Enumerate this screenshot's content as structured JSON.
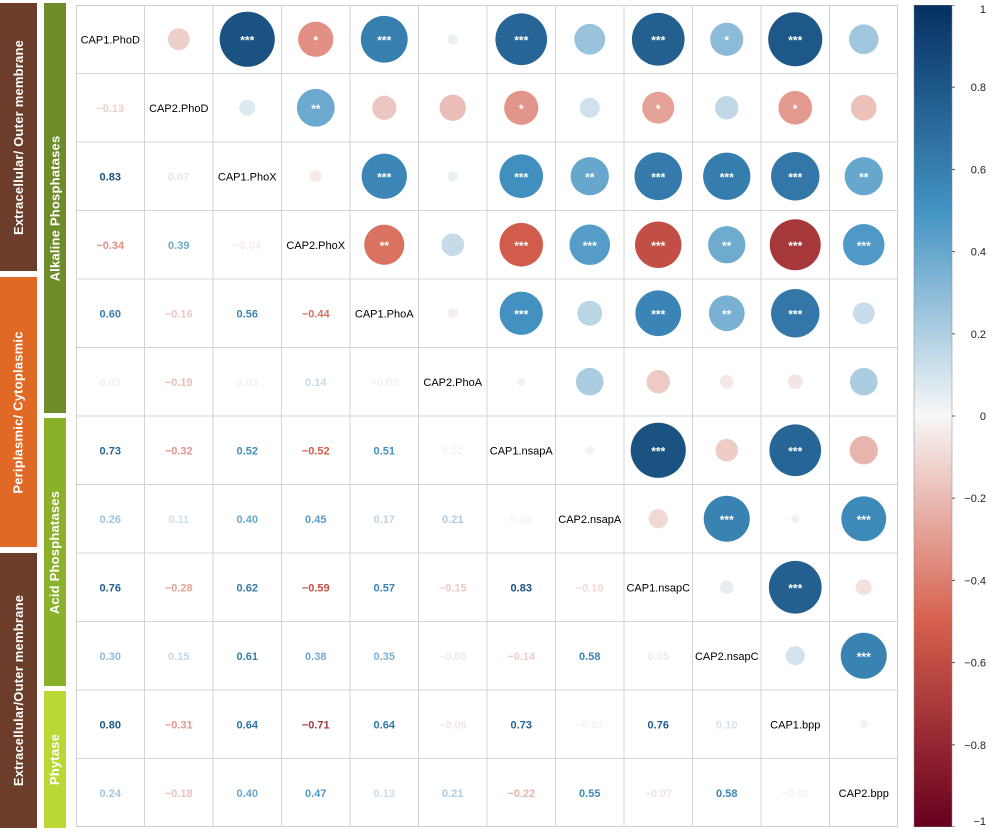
{
  "bands": [
    {
      "id": "extracellular-outer-top",
      "label": "Extracellular/ Outer membrane",
      "color": "#6b3d2a"
    },
    {
      "id": "periplasmic-cytoplasmic",
      "label": "Periplasmic/ Cytoplasmic",
      "color": "#e06a25"
    },
    {
      "id": "extracellular-outer-bottom",
      "label": "Extracellular/Outer membrane",
      "color": "#6b3d2a"
    },
    {
      "id": "alkaline-phosphatases",
      "label": "Alkaline Phosphatases",
      "color": "#6e8c2a"
    },
    {
      "id": "acid-phosphatases",
      "label": "Acid Phosphatases",
      "color": "#8bb02a"
    },
    {
      "id": "phytase",
      "label": "Phytase",
      "color": "#b9d833"
    }
  ],
  "chart_data": {
    "type": "heatmap",
    "variables": [
      "CAP1.PhoD",
      "CAP2.PhoD",
      "CAP1.PhoX",
      "CAP2.PhoX",
      "CAP1.PhoA",
      "CAP2.PhoA",
      "CAP1.nsapA",
      "CAP2.nsapA",
      "CAP1.nsapC",
      "CAP2.nsapC",
      "CAP1.bpp",
      "CAP2.bpp"
    ],
    "lower_labels": [
      [],
      [
        "−0.13"
      ],
      [
        "0.83",
        "0.07"
      ],
      [
        "−0.34",
        "0.39",
        "−0.04"
      ],
      [
        "0.60",
        "−0.16",
        "0.56",
        "−0.44"
      ],
      [
        "0.03",
        "−0.19",
        "0.03",
        "0.14",
        "−0.03"
      ],
      [
        "0.73",
        "−0.32",
        "0.52",
        "−0.52",
        "0.51",
        "0.02"
      ],
      [
        "0.26",
        "0.11",
        "0.40",
        "0.45",
        "0.17",
        "0.21",
        "0.02"
      ],
      [
        "0.76",
        "−0.28",
        "0.62",
        "−0.59",
        "0.57",
        "−0.15",
        "0.83",
        "−0.10"
      ],
      [
        "0.30",
        "0.15",
        "0.61",
        "0.38",
        "0.35",
        "−0.05",
        "−0.14",
        "0.58",
        "0.05"
      ],
      [
        "0.80",
        "−0.31",
        "0.64",
        "−0.71",
        "0.64",
        "−0.06",
        "0.73",
        "−0.02",
        "0.76",
        "0.10"
      ],
      [
        "0.24",
        "−0.18",
        "0.40",
        "0.47",
        "0.13",
        "0.21",
        "−0.22",
        "0.55",
        "−0.07",
        "0.58",
        "−0.02"
      ]
    ],
    "correlation": [
      [
        1.0,
        -0.13,
        0.83,
        -0.34,
        0.6,
        0.03,
        0.73,
        0.26,
        0.76,
        0.3,
        0.8,
        0.24
      ],
      [
        -0.13,
        1.0,
        0.07,
        0.39,
        -0.16,
        -0.19,
        -0.32,
        0.11,
        -0.28,
        0.15,
        -0.31,
        -0.18
      ],
      [
        0.83,
        0.07,
        1.0,
        -0.04,
        0.56,
        0.03,
        0.52,
        0.4,
        0.62,
        0.61,
        0.64,
        0.4
      ],
      [
        -0.34,
        0.39,
        -0.04,
        1.0,
        -0.44,
        0.14,
        -0.52,
        0.45,
        -0.59,
        0.38,
        -0.71,
        0.47
      ],
      [
        0.6,
        -0.16,
        0.56,
        -0.44,
        1.0,
        -0.03,
        0.51,
        0.17,
        0.57,
        0.35,
        0.64,
        0.13
      ],
      [
        0.03,
        -0.19,
        0.03,
        0.14,
        -0.03,
        1.0,
        0.02,
        0.21,
        -0.15,
        -0.05,
        -0.06,
        0.21
      ],
      [
        0.73,
        -0.32,
        0.52,
        -0.52,
        0.51,
        0.02,
        1.0,
        0.02,
        0.83,
        -0.14,
        0.73,
        -0.22
      ],
      [
        0.26,
        0.11,
        0.4,
        0.45,
        0.17,
        0.21,
        0.02,
        1.0,
        -0.1,
        0.58,
        -0.02,
        0.55
      ],
      [
        0.76,
        -0.28,
        0.62,
        -0.59,
        0.57,
        -0.15,
        0.83,
        -0.1,
        1.0,
        0.05,
        0.76,
        -0.07
      ],
      [
        0.3,
        0.15,
        0.61,
        0.38,
        0.35,
        -0.05,
        -0.14,
        0.58,
        0.05,
        1.0,
        0.1,
        0.58
      ],
      [
        0.8,
        -0.31,
        0.64,
        -0.71,
        0.64,
        -0.06,
        0.73,
        -0.02,
        0.76,
        0.1,
        1.0,
        -0.02
      ],
      [
        0.24,
        -0.18,
        0.4,
        0.47,
        0.13,
        0.21,
        -0.22,
        0.55,
        -0.07,
        0.58,
        -0.02,
        1.0
      ]
    ],
    "significance": [
      [
        "",
        "",
        "***",
        "*",
        "***",
        "",
        "***",
        "",
        "***",
        "*",
        "***",
        ""
      ],
      [
        "",
        "",
        "",
        "**",
        "",
        "",
        "*",
        "",
        "*",
        "",
        "*",
        ""
      ],
      [
        "",
        "",
        "",
        "",
        "***",
        "",
        "***",
        "**",
        "***",
        "***",
        "***",
        "**"
      ],
      [
        "",
        "",
        "",
        "",
        "**",
        "",
        "***",
        "***",
        "***",
        "**",
        "***",
        "***"
      ],
      [
        "",
        "",
        "",
        "",
        "",
        "",
        "***",
        "",
        "***",
        "**",
        "***",
        ""
      ],
      [
        "",
        "",
        "",
        "",
        "",
        "",
        "",
        "",
        "",
        "",
        "",
        ""
      ],
      [
        "",
        "",
        "",
        "",
        "",
        "",
        "",
        "",
        "***",
        "",
        "***",
        ""
      ],
      [
        "",
        "",
        "",
        "",
        "",
        "",
        "",
        "",
        "",
        "***",
        "",
        "***"
      ],
      [
        "",
        "",
        "",
        "",
        "",
        "",
        "",
        "",
        "",
        "",
        "***",
        ""
      ],
      [
        "",
        "",
        "",
        "",
        "",
        "",
        "",
        "",
        "",
        "",
        "",
        "***"
      ],
      [
        "",
        "",
        "",
        "",
        "",
        "",
        "",
        "",
        "",
        "",
        "",
        ""
      ],
      [
        "",
        "",
        "",
        "",
        "",
        "",
        "",
        "",
        "",
        "",
        "",
        ""
      ]
    ],
    "colorbar": {
      "ticks": [
        "1",
        "0.8",
        "0.6",
        "0.4",
        "0.2",
        "0",
        "−0.2",
        "−0.4",
        "−0.6",
        "−0.8",
        "−1"
      ],
      "range": [
        -1,
        1
      ]
    },
    "colors": {
      "negative": "#67001f",
      "mid_negative": "#d6604d",
      "neutral": "#f7f7f7",
      "mid_positive": "#4393c3",
      "positive": "#053061"
    }
  }
}
